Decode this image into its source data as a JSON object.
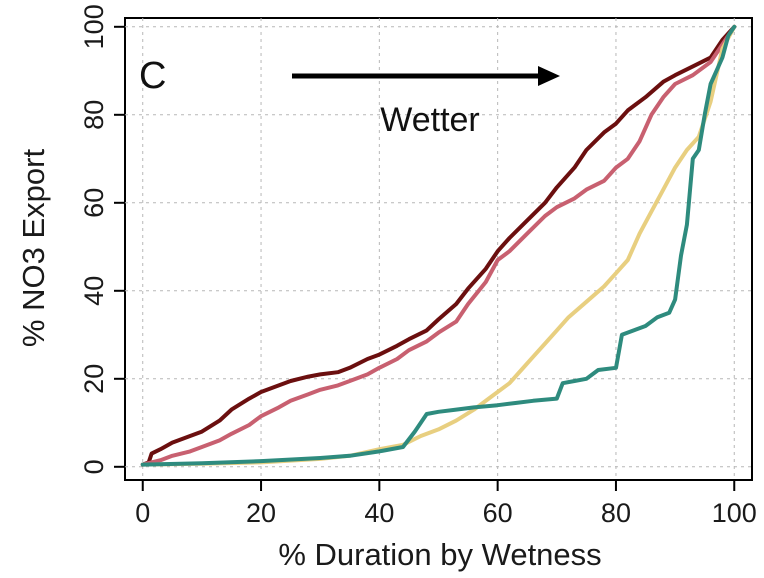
{
  "chart_data": {
    "type": "line",
    "panel_label": "C",
    "annotation": "Wetter",
    "xlabel": "% Duration by Wetness",
    "ylabel": "% NO3 Export",
    "xlim": [
      -3,
      103
    ],
    "ylim": [
      -3,
      102
    ],
    "xticks": [
      0,
      20,
      40,
      60,
      80,
      100
    ],
    "yticks": [
      0,
      20,
      40,
      60,
      80,
      100
    ],
    "grid": true,
    "series": [
      {
        "color": "#6b0f0f",
        "points": [
          [
            0,
            0.5
          ],
          [
            1,
            1
          ],
          [
            1.5,
            3
          ],
          [
            3,
            4
          ],
          [
            5,
            5.5
          ],
          [
            8,
            7
          ],
          [
            10,
            8
          ],
          [
            13,
            10.5
          ],
          [
            15,
            13
          ],
          [
            18,
            15.5
          ],
          [
            20,
            17
          ],
          [
            23,
            18.5
          ],
          [
            25,
            19.5
          ],
          [
            28,
            20.5
          ],
          [
            30,
            21
          ],
          [
            33,
            21.5
          ],
          [
            35,
            22.5
          ],
          [
            38,
            24.5
          ],
          [
            40,
            25.5
          ],
          [
            43,
            27.5
          ],
          [
            45,
            29
          ],
          [
            48,
            31
          ],
          [
            50,
            33.5
          ],
          [
            53,
            37
          ],
          [
            55,
            40.5
          ],
          [
            58,
            45
          ],
          [
            60,
            49
          ],
          [
            62,
            52
          ],
          [
            65,
            56
          ],
          [
            68,
            60
          ],
          [
            70,
            63.5
          ],
          [
            73,
            68
          ],
          [
            75,
            72
          ],
          [
            78,
            76
          ],
          [
            80,
            78
          ],
          [
            82,
            81
          ],
          [
            85,
            84
          ],
          [
            88,
            87.5
          ],
          [
            90,
            89
          ],
          [
            93,
            91
          ],
          [
            96,
            93
          ],
          [
            98,
            97
          ],
          [
            100,
            100
          ]
        ]
      },
      {
        "color": "#c86070",
        "points": [
          [
            0,
            0.5
          ],
          [
            3,
            1.5
          ],
          [
            5,
            2.5
          ],
          [
            8,
            3.5
          ],
          [
            10,
            4.5
          ],
          [
            13,
            6
          ],
          [
            15,
            7.5
          ],
          [
            18,
            9.5
          ],
          [
            20,
            11.5
          ],
          [
            23,
            13.5
          ],
          [
            25,
            15
          ],
          [
            28,
            16.5
          ],
          [
            30,
            17.5
          ],
          [
            33,
            18.5
          ],
          [
            35,
            19.5
          ],
          [
            38,
            21
          ],
          [
            40,
            22.5
          ],
          [
            43,
            24.5
          ],
          [
            45,
            26.5
          ],
          [
            48,
            28.5
          ],
          [
            50,
            30.5
          ],
          [
            53,
            33
          ],
          [
            55,
            37
          ],
          [
            58,
            42
          ],
          [
            60,
            47
          ],
          [
            62,
            49
          ],
          [
            65,
            53
          ],
          [
            68,
            57
          ],
          [
            70,
            59
          ],
          [
            73,
            61
          ],
          [
            75,
            63
          ],
          [
            78,
            65
          ],
          [
            80,
            68
          ],
          [
            82,
            70
          ],
          [
            84,
            74
          ],
          [
            86,
            80
          ],
          [
            88,
            84
          ],
          [
            90,
            87
          ],
          [
            93,
            89
          ],
          [
            96,
            92
          ],
          [
            100,
            100
          ]
        ]
      },
      {
        "color": "#e8cf80",
        "points": [
          [
            0,
            0.5
          ],
          [
            10,
            0.7
          ],
          [
            20,
            1
          ],
          [
            30,
            1.8
          ],
          [
            35,
            2.5
          ],
          [
            40,
            4
          ],
          [
            44,
            5
          ],
          [
            47,
            7
          ],
          [
            50,
            8.5
          ],
          [
            53,
            10.5
          ],
          [
            56,
            13
          ],
          [
            59,
            16
          ],
          [
            62,
            19
          ],
          [
            64,
            22
          ],
          [
            66,
            25
          ],
          [
            68,
            28
          ],
          [
            70,
            31
          ],
          [
            72,
            34
          ],
          [
            75,
            37.5
          ],
          [
            78,
            41
          ],
          [
            80,
            44
          ],
          [
            82,
            47
          ],
          [
            84,
            53
          ],
          [
            86,
            58
          ],
          [
            88,
            63
          ],
          [
            90,
            68
          ],
          [
            92,
            72
          ],
          [
            94,
            75
          ],
          [
            96,
            83
          ],
          [
            98,
            95
          ],
          [
            100,
            100
          ]
        ]
      },
      {
        "color": "#2e8b7e",
        "points": [
          [
            0,
            0.5
          ],
          [
            10,
            0.8
          ],
          [
            20,
            1.3
          ],
          [
            30,
            2
          ],
          [
            35,
            2.5
          ],
          [
            40,
            3.5
          ],
          [
            44,
            4.5
          ],
          [
            46,
            8
          ],
          [
            47,
            10
          ],
          [
            48,
            12
          ],
          [
            50,
            12.5
          ],
          [
            53,
            13
          ],
          [
            56,
            13.5
          ],
          [
            60,
            14
          ],
          [
            63,
            14.5
          ],
          [
            66,
            15
          ],
          [
            70,
            15.5
          ],
          [
            71,
            19
          ],
          [
            73,
            19.5
          ],
          [
            75,
            20
          ],
          [
            77,
            22
          ],
          [
            80,
            22.5
          ],
          [
            81,
            30
          ],
          [
            83,
            31
          ],
          [
            85,
            32
          ],
          [
            87,
            34
          ],
          [
            89,
            35
          ],
          [
            90,
            38
          ],
          [
            91,
            48
          ],
          [
            92,
            55
          ],
          [
            93,
            70
          ],
          [
            94,
            72
          ],
          [
            95,
            80
          ],
          [
            96,
            87
          ],
          [
            97,
            90
          ],
          [
            98,
            93
          ],
          [
            99,
            98
          ],
          [
            100,
            100
          ]
        ]
      }
    ]
  }
}
